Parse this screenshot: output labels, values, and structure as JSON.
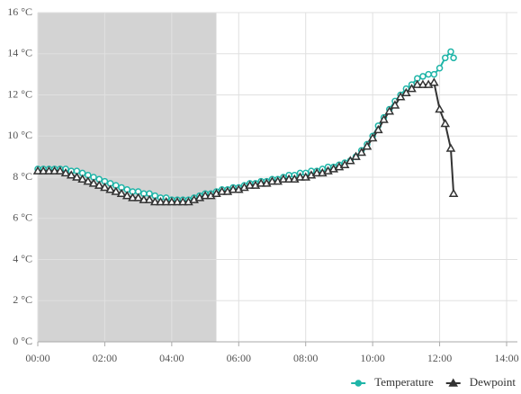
{
  "chart_data": {
    "type": "line",
    "x": [
      "00:00",
      "00:10",
      "00:20",
      "00:30",
      "00:40",
      "00:50",
      "01:00",
      "01:10",
      "01:20",
      "01:30",
      "01:40",
      "01:50",
      "02:00",
      "02:10",
      "02:20",
      "02:30",
      "02:40",
      "02:50",
      "03:00",
      "03:10",
      "03:20",
      "03:30",
      "03:40",
      "03:50",
      "04:00",
      "04:10",
      "04:20",
      "04:30",
      "04:40",
      "04:50",
      "05:00",
      "05:10",
      "05:20",
      "05:30",
      "05:40",
      "05:50",
      "06:00",
      "06:10",
      "06:20",
      "06:30",
      "06:40",
      "06:50",
      "07:00",
      "07:10",
      "07:20",
      "07:30",
      "07:40",
      "07:50",
      "08:00",
      "08:10",
      "08:20",
      "08:30",
      "08:40",
      "08:50",
      "09:00",
      "09:10",
      "09:20",
      "09:30",
      "09:40",
      "09:50",
      "10:00",
      "10:10",
      "10:20",
      "10:30",
      "10:40",
      "10:50",
      "11:00",
      "11:10",
      "11:20",
      "11:30",
      "11:40",
      "11:50",
      "12:00",
      "12:10",
      "12:20",
      "12:25"
    ],
    "series": [
      {
        "name": "Temperature",
        "color": "#1fb5a8",
        "marker": "circle",
        "values": [
          8.4,
          8.4,
          8.4,
          8.4,
          8.4,
          8.4,
          8.3,
          8.3,
          8.2,
          8.1,
          8.0,
          7.9,
          7.8,
          7.7,
          7.6,
          7.5,
          7.4,
          7.3,
          7.3,
          7.2,
          7.2,
          7.1,
          7.0,
          7.0,
          6.9,
          6.9,
          6.9,
          6.9,
          7.0,
          7.1,
          7.2,
          7.2,
          7.3,
          7.4,
          7.4,
          7.5,
          7.5,
          7.6,
          7.7,
          7.7,
          7.8,
          7.8,
          7.9,
          7.9,
          8.0,
          8.1,
          8.1,
          8.2,
          8.2,
          8.3,
          8.3,
          8.4,
          8.5,
          8.5,
          8.6,
          8.7,
          8.8,
          9.0,
          9.3,
          9.6,
          10.0,
          10.5,
          10.9,
          11.3,
          11.7,
          12.0,
          12.3,
          12.5,
          12.8,
          12.9,
          13.0,
          13.0,
          13.3,
          13.8,
          14.1,
          13.8
        ]
      },
      {
        "name": "Dewpoint",
        "color": "#333333",
        "marker": "triangle",
        "values": [
          8.3,
          8.3,
          8.3,
          8.3,
          8.3,
          8.2,
          8.1,
          8.0,
          7.9,
          7.8,
          7.7,
          7.6,
          7.5,
          7.4,
          7.3,
          7.2,
          7.1,
          7.0,
          7.0,
          6.9,
          6.9,
          6.8,
          6.8,
          6.8,
          6.8,
          6.8,
          6.8,
          6.8,
          6.9,
          7.0,
          7.1,
          7.1,
          7.2,
          7.3,
          7.3,
          7.4,
          7.4,
          7.5,
          7.6,
          7.6,
          7.7,
          7.7,
          7.8,
          7.8,
          7.9,
          7.9,
          7.9,
          8.0,
          8.0,
          8.1,
          8.2,
          8.2,
          8.3,
          8.4,
          8.5,
          8.6,
          8.8,
          9.0,
          9.2,
          9.5,
          9.9,
          10.3,
          10.8,
          11.2,
          11.5,
          11.9,
          12.1,
          12.3,
          12.5,
          12.5,
          12.5,
          12.6,
          11.3,
          10.6,
          9.4,
          7.2
        ]
      }
    ],
    "xlim": [
      "00:00",
      "14:00"
    ],
    "xticks": [
      "00:00",
      "02:00",
      "04:00",
      "06:00",
      "08:00",
      "10:00",
      "12:00",
      "14:00"
    ],
    "ylim": [
      0,
      16
    ],
    "yticks": [
      {
        "value": 0,
        "label": "0 °C"
      },
      {
        "value": 2,
        "label": "2 °C"
      },
      {
        "value": 4,
        "label": "4 °C"
      },
      {
        "value": 6,
        "label": "6 °C"
      },
      {
        "value": 8,
        "label": "8 °C"
      },
      {
        "value": 10,
        "label": "10 °C"
      },
      {
        "value": 12,
        "label": "12 °C"
      },
      {
        "value": 14,
        "label": "14 °C"
      },
      {
        "value": 16,
        "label": "16 °C"
      }
    ],
    "shaded_band": [
      "00:00",
      "05:20"
    ],
    "grid": true,
    "legend": "bottom-right"
  }
}
